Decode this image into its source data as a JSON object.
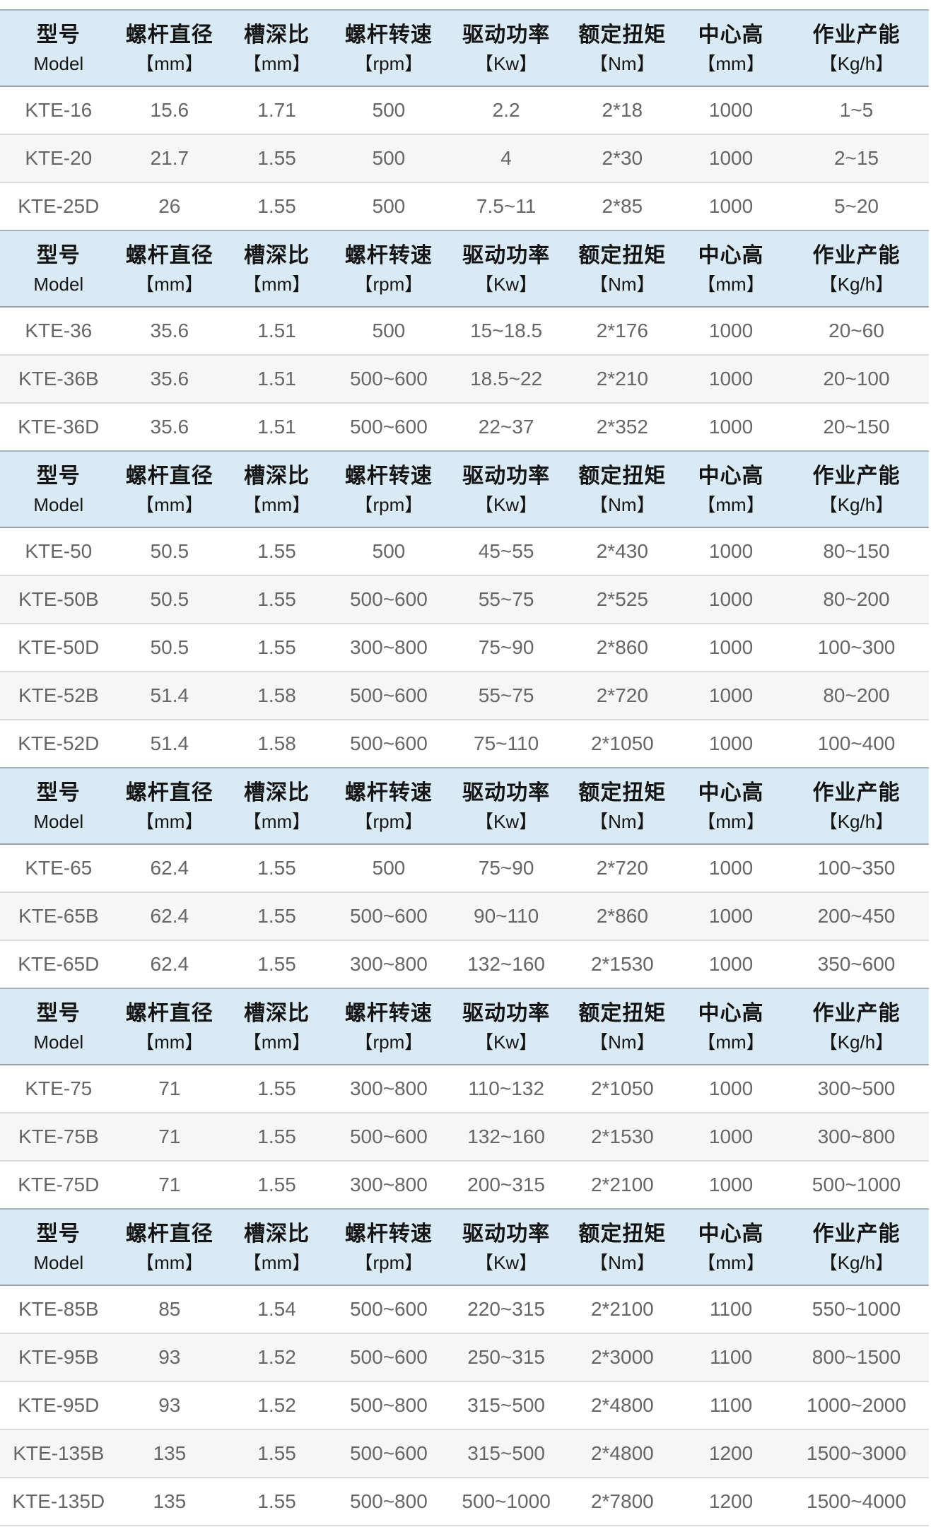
{
  "colors": {
    "header_bg": "#d9eaf4",
    "header_text": "#141414",
    "row_bg": "#ffffff",
    "row_alt_bg": "#f6f6f6",
    "row_border": "#dddddd",
    "header_border": "#9aa4aa",
    "cell_text": "#666666"
  },
  "table": {
    "columns": [
      {
        "zh": "型号",
        "sub": "Model"
      },
      {
        "zh": "螺杆直径",
        "sub": "【mm】"
      },
      {
        "zh": "槽深比",
        "sub": "【mm】"
      },
      {
        "zh": "螺杆转速",
        "sub": "【rpm】"
      },
      {
        "zh": "驱动功率",
        "sub": "【Kw】"
      },
      {
        "zh": "额定扭矩",
        "sub": "【Nm】"
      },
      {
        "zh": "中心高",
        "sub": "【mm】"
      },
      {
        "zh": "作业产能",
        "sub": "【Kg/h】"
      }
    ],
    "col_widths": [
      "12.6%",
      "11.3%",
      "11.8%",
      "12.3%",
      "13.0%",
      "12.0%",
      "11.4%",
      "15.6%"
    ],
    "sections": [
      {
        "rows": [
          [
            "KTE-16",
            "15.6",
            "1.71",
            "500",
            "2.2",
            "2*18",
            "1000",
            "1~5"
          ],
          [
            "KTE-20",
            "21.7",
            "1.55",
            "500",
            "4",
            "2*30",
            "1000",
            "2~15"
          ],
          [
            "KTE-25D",
            "26",
            "1.55",
            "500",
            "7.5~11",
            "2*85",
            "1000",
            "5~20"
          ]
        ]
      },
      {
        "rows": [
          [
            "KTE-36",
            "35.6",
            "1.51",
            "500",
            "15~18.5",
            "2*176",
            "1000",
            "20~60"
          ],
          [
            "KTE-36B",
            "35.6",
            "1.51",
            "500~600",
            "18.5~22",
            "2*210",
            "1000",
            "20~100"
          ],
          [
            "KTE-36D",
            "35.6",
            "1.51",
            "500~600",
            "22~37",
            "2*352",
            "1000",
            "20~150"
          ]
        ]
      },
      {
        "rows": [
          [
            "KTE-50",
            "50.5",
            "1.55",
            "500",
            "45~55",
            "2*430",
            "1000",
            "80~150"
          ],
          [
            "KTE-50B",
            "50.5",
            "1.55",
            "500~600",
            "55~75",
            "2*525",
            "1000",
            "80~200"
          ],
          [
            "KTE-50D",
            "50.5",
            "1.55",
            "300~800",
            "75~90",
            "2*860",
            "1000",
            "100~300"
          ],
          [
            "KTE-52B",
            "51.4",
            "1.58",
            "500~600",
            "55~75",
            "2*720",
            "1000",
            "80~200"
          ],
          [
            "KTE-52D",
            "51.4",
            "1.58",
            "500~600",
            "75~110",
            "2*1050",
            "1000",
            "100~400"
          ]
        ]
      },
      {
        "rows": [
          [
            "KTE-65",
            "62.4",
            "1.55",
            "500",
            "75~90",
            "2*720",
            "1000",
            "100~350"
          ],
          [
            "KTE-65B",
            "62.4",
            "1.55",
            "500~600",
            "90~110",
            "2*860",
            "1000",
            "200~450"
          ],
          [
            "KTE-65D",
            "62.4",
            "1.55",
            "300~800",
            "132~160",
            "2*1530",
            "1000",
            "350~600"
          ]
        ]
      },
      {
        "rows": [
          [
            "KTE-75",
            "71",
            "1.55",
            "300~800",
            "110~132",
            "2*1050",
            "1000",
            "300~500"
          ],
          [
            "KTE-75B",
            "71",
            "1.55",
            "500~600",
            "132~160",
            "2*1530",
            "1000",
            "300~800"
          ],
          [
            "KTE-75D",
            "71",
            "1.55",
            "300~800",
            "200~315",
            "2*2100",
            "1000",
            "500~1000"
          ]
        ]
      },
      {
        "rows": [
          [
            "KTE-85B",
            "85",
            "1.54",
            "500~600",
            "220~315",
            "2*2100",
            "1100",
            "550~1000"
          ],
          [
            "KTE-95B",
            "93",
            "1.52",
            "500~600",
            "250~315",
            "2*3000",
            "1100",
            "800~1500"
          ],
          [
            "KTE-95D",
            "93",
            "1.52",
            "500~800",
            "315~500",
            "2*4800",
            "1100",
            "1000~2000"
          ],
          [
            "KTE-135B",
            "135",
            "1.55",
            "500~600",
            "315~500",
            "2*4800",
            "1200",
            "1500~3000"
          ],
          [
            "KTE-135D",
            "135",
            "1.55",
            "500~800",
            "500~1000",
            "2*7800",
            "1200",
            "1500~4000"
          ]
        ]
      }
    ]
  }
}
